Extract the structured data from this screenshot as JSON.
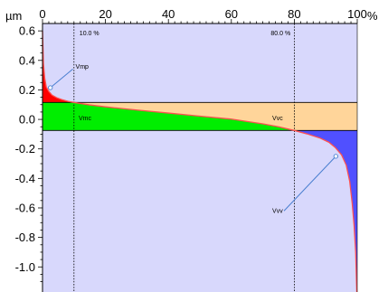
{
  "chart_data": {
    "type": "area",
    "x_unit": "%",
    "y_unit": "µm",
    "xlim": [
      0,
      100
    ],
    "ylim": [
      -1.17,
      0.65
    ],
    "x_ticks": [
      {
        "value": 0,
        "label": "0"
      },
      {
        "value": 20,
        "label": "20"
      },
      {
        "value": 40,
        "label": "40"
      },
      {
        "value": 60,
        "label": "60"
      },
      {
        "value": 80,
        "label": "80"
      },
      {
        "value": 100,
        "label": "100"
      }
    ],
    "y_ticks": [
      {
        "value": 0.6,
        "label": "0.6"
      },
      {
        "value": 0.4,
        "label": "0.4"
      },
      {
        "value": 0.2,
        "label": "0.2"
      },
      {
        "value": 0.0,
        "label": "0.0"
      },
      {
        "value": -0.2,
        "label": "-0.2"
      },
      {
        "value": -0.4,
        "label": "-0.4"
      },
      {
        "value": -0.6,
        "label": "-0.6"
      },
      {
        "value": -0.8,
        "label": "-0.8"
      },
      {
        "value": -1.0,
        "label": "-1.0"
      }
    ],
    "thresholds": [
      {
        "x": 10.0,
        "label": "10.0 %"
      },
      {
        "x": 80.0,
        "label": "80.0 %"
      }
    ],
    "levels": {
      "upper": 0.115,
      "lower": -0.075
    },
    "curve": [
      {
        "x": 0,
        "y": 0.6
      },
      {
        "x": 0.3,
        "y": 0.38
      },
      {
        "x": 0.7,
        "y": 0.28
      },
      {
        "x": 1.2,
        "y": 0.22
      },
      {
        "x": 2,
        "y": 0.19
      },
      {
        "x": 3,
        "y": 0.165
      },
      {
        "x": 4.5,
        "y": 0.147
      },
      {
        "x": 6,
        "y": 0.135
      },
      {
        "x": 8,
        "y": 0.123
      },
      {
        "x": 10,
        "y": 0.115
      },
      {
        "x": 15,
        "y": 0.098
      },
      {
        "x": 20,
        "y": 0.085
      },
      {
        "x": 30,
        "y": 0.063
      },
      {
        "x": 40,
        "y": 0.043
      },
      {
        "x": 50,
        "y": 0.022
      },
      {
        "x": 60,
        "y": 0.002
      },
      {
        "x": 70,
        "y": -0.03
      },
      {
        "x": 75,
        "y": -0.05
      },
      {
        "x": 80,
        "y": -0.075
      },
      {
        "x": 84,
        "y": -0.098
      },
      {
        "x": 88,
        "y": -0.125
      },
      {
        "x": 91,
        "y": -0.155
      },
      {
        "x": 93,
        "y": -0.19
      },
      {
        "x": 95,
        "y": -0.24
      },
      {
        "x": 96.5,
        "y": -0.31
      },
      {
        "x": 97.6,
        "y": -0.42
      },
      {
        "x": 98.4,
        "y": -0.57
      },
      {
        "x": 99.0,
        "y": -0.72
      },
      {
        "x": 99.5,
        "y": -0.9
      },
      {
        "x": 99.85,
        "y": -1.17
      }
    ],
    "regions": [
      {
        "name": "Vmp",
        "label": "Vmp",
        "color": "#ff0000"
      },
      {
        "name": "Vmc",
        "label": "Vmc",
        "color": "#00ee00"
      },
      {
        "name": "Vvc",
        "label": "Vvc",
        "color": "#ffd59a"
      },
      {
        "name": "Vvv",
        "label": "Vvv",
        "color": "#5050ff"
      }
    ],
    "annotations": [
      {
        "label": "Vmp",
        "x": 10.5,
        "y": 0.36,
        "arrow_to": {
          "x": 2.5,
          "y": 0.215
        }
      },
      {
        "label": "Vmc",
        "x": 11.5,
        "y": 0.01,
        "arrow_to": null
      },
      {
        "label": "Vvc",
        "x": 73,
        "y": 0.01,
        "arrow_to": null
      },
      {
        "label": "Vvv",
        "x": 73,
        "y": -0.62,
        "arrow_to": {
          "x": 93.2,
          "y": -0.25
        }
      }
    ],
    "plot_background": "#d8d8fc",
    "curve_color": "#ff5050",
    "grid": false
  }
}
